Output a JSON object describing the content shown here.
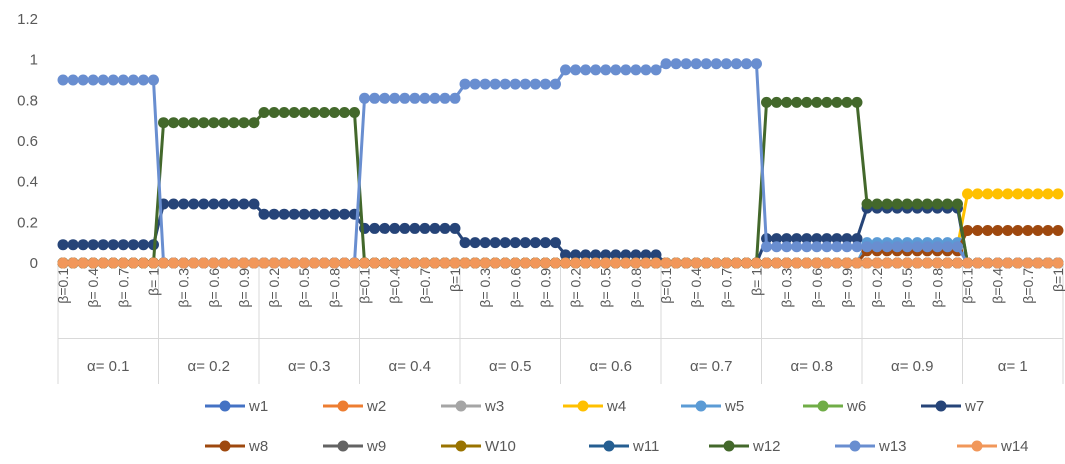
{
  "chart_data": {
    "type": "line",
    "ylim": [
      0,
      1.2
    ],
    "yticks": [
      "0",
      "0.2",
      "0.4",
      "0.6",
      "0.8",
      "1",
      "1.2"
    ],
    "grid": false,
    "legend_position": "bottom",
    "groups": [
      {
        "label": "α= 0.1",
        "x": [
          "β=0.1",
          "β=0.2",
          "β=0.3",
          "β= 0.4",
          "β=0.5",
          "β=0.6",
          "β= 0.7",
          "β=0.8",
          "β=0.9",
          "β= 1"
        ]
      },
      {
        "label": "α= 0.2",
        "x": [
          "β=0.1",
          "β=0.2",
          "β= 0.3",
          "β=0.4",
          "β=0.5",
          "β= 0.6",
          "β=0.7",
          "β=0.8",
          "β= 0.9",
          "β=1"
        ]
      },
      {
        "label": "α= 0.3",
        "x": [
          "β=0.1",
          "β= 0.2",
          "β=0.3",
          "β=0.4",
          "β= 0.5",
          "β=0.6",
          "β=0.7",
          "β= 0.8",
          "β=0.9",
          "β=1"
        ]
      },
      {
        "label": "α= 0.4",
        "x": [
          "β=0.1",
          "β=0.2",
          "β=0.3",
          "β=0.4",
          "β=0.5",
          "β=0.6",
          "β=0.7",
          "β=0.8",
          "β=0.9",
          "β=1"
        ]
      },
      {
        "label": "α= 0.5",
        "x": [
          "β=0.1",
          "β=0.2",
          "β= 0.3",
          "β=0.4",
          "β=0.5",
          "β= 0.6",
          "β=0.7",
          "β=0.8",
          "β= 0.9",
          "β=1"
        ]
      },
      {
        "label": "α= 0.6",
        "x": [
          "β=0.1",
          "β= 0.2",
          "β=0.3",
          "β=0.4",
          "β= 0.5",
          "β=0.6",
          "β=0.7",
          "β= 0.8",
          "β=0.9",
          "β=1"
        ]
      },
      {
        "label": "α= 0.7",
        "x": [
          "β=0.1",
          "β=0.2",
          "β=0.3",
          "β= 0.4",
          "β=0.5",
          "β=0.6",
          "β= 0.7",
          "β=0.8",
          "β=0.9",
          "β= 1"
        ]
      },
      {
        "label": "α= 0.8",
        "x": [
          "β=0.1",
          "β=0.2",
          "β= 0.3",
          "β=0.4",
          "β=0.5",
          "β= 0.6",
          "β=0.7",
          "β=0.8",
          "β= 0.9",
          "β=1"
        ]
      },
      {
        "label": "α= 0.9",
        "x": [
          "β=0.1",
          "β= 0.2",
          "β=0.3",
          "β=0.4",
          "β= 0.5",
          "β=0.6",
          "β=0.7",
          "β= 0.8",
          "β=0.9",
          "β=1"
        ]
      },
      {
        "label": "α= 1",
        "x": [
          "β=0.1",
          "β=0.2",
          "β=0.3",
          "β=0.4",
          "β=0.5",
          "β=0.6",
          "β=0.7",
          "β=0.8",
          "β=0.9",
          "β=1"
        ]
      }
    ],
    "series": [
      {
        "name": "w1",
        "color": "#4472C4",
        "segments": [
          [
            0,
            100,
            0
          ]
        ]
      },
      {
        "name": "w2",
        "color": "#ED7D31",
        "segments": [
          [
            0,
            100,
            0
          ]
        ]
      },
      {
        "name": "w3",
        "color": "#A5A5A5",
        "segments": [
          [
            0,
            100,
            0
          ]
        ]
      },
      {
        "name": "w4",
        "color": "#FFC000",
        "segments": [
          [
            0,
            80,
            0
          ],
          [
            80,
            90,
            0.08
          ],
          [
            90,
            100,
            0.34
          ]
        ]
      },
      {
        "name": "w5",
        "color": "#5B9BD5",
        "segments": [
          [
            0,
            80,
            0
          ],
          [
            80,
            90,
            0.1
          ],
          [
            90,
            100,
            0
          ]
        ]
      },
      {
        "name": "w6",
        "color": "#70AD47",
        "segments": [
          [
            0,
            100,
            0
          ]
        ]
      },
      {
        "name": "w7",
        "color": "#264478",
        "segments": [
          [
            0,
            10,
            0.09
          ],
          [
            10,
            20,
            0.29
          ],
          [
            20,
            30,
            0.24
          ],
          [
            30,
            40,
            0.17
          ],
          [
            40,
            50,
            0.1
          ],
          [
            50,
            60,
            0.04
          ],
          [
            60,
            70,
            0
          ],
          [
            70,
            80,
            0.12
          ],
          [
            80,
            90,
            0.27
          ],
          [
            90,
            100,
            0
          ]
        ]
      },
      {
        "name": "w8",
        "color": "#9E480E",
        "segments": [
          [
            0,
            80,
            0
          ],
          [
            80,
            90,
            0.06
          ],
          [
            90,
            100,
            0.16
          ]
        ]
      },
      {
        "name": "w9",
        "color": "#636363",
        "segments": [
          [
            0,
            100,
            0
          ]
        ]
      },
      {
        "name": "W10",
        "color": "#997300",
        "segments": [
          [
            0,
            100,
            0
          ]
        ]
      },
      {
        "name": "w11",
        "color": "#255E91",
        "segments": [
          [
            0,
            100,
            0
          ]
        ]
      },
      {
        "name": "w12",
        "color": "#43682B",
        "segments": [
          [
            0,
            10,
            0
          ],
          [
            10,
            20,
            0.69
          ],
          [
            20,
            30,
            0.74
          ],
          [
            30,
            70,
            0
          ],
          [
            70,
            80,
            0.79
          ],
          [
            80,
            90,
            0.29
          ],
          [
            90,
            100,
            0
          ]
        ]
      },
      {
        "name": "w13",
        "color": "#698ED0",
        "segments": [
          [
            0,
            10,
            0.9
          ],
          [
            10,
            30,
            0
          ],
          [
            30,
            40,
            0.81
          ],
          [
            40,
            50,
            0.88
          ],
          [
            50,
            60,
            0.95
          ],
          [
            60,
            70,
            0.98
          ],
          [
            70,
            90,
            0.08
          ],
          [
            90,
            100,
            0
          ]
        ]
      },
      {
        "name": "w14",
        "color": "#F1975A",
        "segments": [
          [
            0,
            100,
            0
          ]
        ]
      }
    ]
  }
}
